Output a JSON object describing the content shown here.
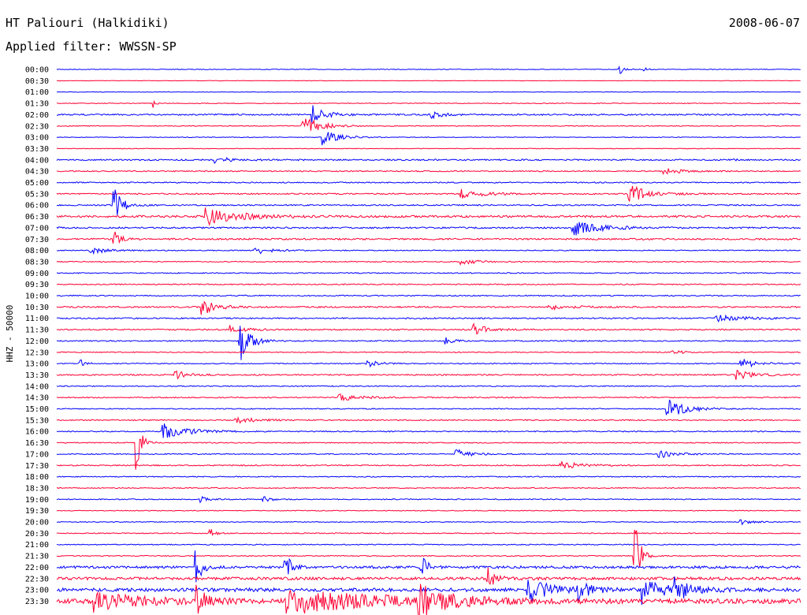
{
  "header": {
    "station": "HT Paliouri (Halkidiki)",
    "date": "2008-06-07",
    "filter": "Applied filter: WWSSN-SP",
    "channel": "HHZ - 50000"
  },
  "colors": {
    "odd_trace": "#0000ff",
    "even_trace": "#ff0033",
    "text": "#000000"
  },
  "chart_data": {
    "type": "line",
    "title": "HT Paliouri (Halkidiki)",
    "subtitle": "Applied filter: WWSSN-SP",
    "ylabel": "HHZ - 50000",
    "xlabel": "",
    "grid": false,
    "legend": "none",
    "row_labels": [
      "00:00",
      "00:30",
      "01:00",
      "01:30",
      "02:00",
      "02:30",
      "03:00",
      "03:30",
      "04:00",
      "04:30",
      "05:00",
      "05:30",
      "06:00",
      "06:30",
      "07:00",
      "07:30",
      "08:00",
      "08:30",
      "09:00",
      "09:30",
      "10:00",
      "10:30",
      "11:00",
      "11:30",
      "12:00",
      "12:30",
      "13:00",
      "13:30",
      "14:00",
      "14:30",
      "15:00",
      "15:30",
      "16:00",
      "16:30",
      "17:00",
      "17:30",
      "18:00",
      "18:30",
      "19:00",
      "19:30",
      "20:00",
      "20:30",
      "21:00",
      "21:30",
      "22:00",
      "22:30",
      "23:00",
      "23:30"
    ],
    "x_range_minutes": [
      0,
      30
    ],
    "noise_level": [
      0.4,
      0.3,
      0.3,
      0.5,
      0.9,
      0.5,
      0.4,
      0.4,
      0.9,
      0.7,
      0.7,
      0.8,
      0.8,
      1.3,
      1.0,
      1.0,
      0.6,
      0.6,
      0.6,
      0.7,
      0.7,
      0.9,
      0.8,
      0.8,
      0.7,
      0.6,
      0.6,
      0.8,
      0.6,
      0.7,
      0.6,
      0.7,
      0.7,
      0.6,
      0.6,
      0.7,
      0.6,
      0.6,
      0.6,
      0.5,
      0.5,
      0.6,
      0.6,
      0.6,
      1.6,
      1.8,
      2.2,
      3.0
    ],
    "events": [
      {
        "row": 0,
        "t": 22.7,
        "amp": 8,
        "dur": 0.15
      },
      {
        "row": 0,
        "t": 23.7,
        "amp": 5,
        "dur": 0.1
      },
      {
        "row": 3,
        "t": 3.9,
        "amp": 5,
        "dur": 0.1
      },
      {
        "row": 4,
        "t": 10.3,
        "amp": 12,
        "dur": 0.5
      },
      {
        "row": 4,
        "t": 15.1,
        "amp": 5,
        "dur": 0.4
      },
      {
        "row": 5,
        "t": 9.9,
        "amp": 14,
        "dur": 0.6
      },
      {
        "row": 6,
        "t": 10.7,
        "amp": 10,
        "dur": 0.6
      },
      {
        "row": 8,
        "t": 6.4,
        "amp": 4,
        "dur": 0.6
      },
      {
        "row": 8,
        "t": 27.2,
        "amp": 7,
        "dur": 0.1
      },
      {
        "row": 9,
        "t": 24.5,
        "amp": 4,
        "dur": 0.6
      },
      {
        "row": 11,
        "t": 16.3,
        "amp": 6,
        "dur": 0.8
      },
      {
        "row": 11,
        "t": 23.1,
        "amp": 12,
        "dur": 0.7
      },
      {
        "row": 12,
        "t": 2.3,
        "amp": 24,
        "dur": 0.3
      },
      {
        "row": 13,
        "t": 6.0,
        "amp": 12,
        "dur": 1.2
      },
      {
        "row": 14,
        "t": 20.8,
        "amp": 10,
        "dur": 1.0
      },
      {
        "row": 15,
        "t": 2.3,
        "amp": 10,
        "dur": 0.3
      },
      {
        "row": 16,
        "t": 1.3,
        "amp": 5,
        "dur": 0.6
      },
      {
        "row": 16,
        "t": 8.0,
        "amp": 5,
        "dur": 0.6
      },
      {
        "row": 17,
        "t": 16.3,
        "amp": 4,
        "dur": 0.6
      },
      {
        "row": 21,
        "t": 5.8,
        "amp": 12,
        "dur": 0.5
      },
      {
        "row": 21,
        "t": 19.8,
        "amp": 4,
        "dur": 0.8
      },
      {
        "row": 22,
        "t": 26.6,
        "amp": 4,
        "dur": 1.0
      },
      {
        "row": 23,
        "t": 7.0,
        "amp": 5,
        "dur": 0.5
      },
      {
        "row": 23,
        "t": 16.8,
        "amp": 8,
        "dur": 0.5
      },
      {
        "row": 24,
        "t": 7.4,
        "amp": 26,
        "dur": 0.4
      },
      {
        "row": 24,
        "t": 15.7,
        "amp": 4,
        "dur": 0.3
      },
      {
        "row": 25,
        "t": 24.8,
        "amp": 3,
        "dur": 0.4
      },
      {
        "row": 26,
        "t": 0.9,
        "amp": 8,
        "dur": 0.2
      },
      {
        "row": 26,
        "t": 12.5,
        "amp": 5,
        "dur": 0.4
      },
      {
        "row": 26,
        "t": 27.6,
        "amp": 7,
        "dur": 0.6
      },
      {
        "row": 27,
        "t": 4.8,
        "amp": 5,
        "dur": 0.5
      },
      {
        "row": 27,
        "t": 27.4,
        "amp": 6,
        "dur": 0.6
      },
      {
        "row": 29,
        "t": 11.4,
        "amp": 4,
        "dur": 0.8
      },
      {
        "row": 30,
        "t": 24.6,
        "amp": 12,
        "dur": 0.8
      },
      {
        "row": 31,
        "t": 7.2,
        "amp": 4,
        "dur": 0.8
      },
      {
        "row": 32,
        "t": 4.3,
        "amp": 10,
        "dur": 0.9
      },
      {
        "row": 33,
        "t": 3.2,
        "amp": 34,
        "dur": 0.2
      },
      {
        "row": 34,
        "t": 16.1,
        "amp": 6,
        "dur": 0.6
      },
      {
        "row": 34,
        "t": 24.3,
        "amp": 5,
        "dur": 0.6
      },
      {
        "row": 35,
        "t": 20.3,
        "amp": 5,
        "dur": 0.8
      },
      {
        "row": 38,
        "t": 5.8,
        "amp": 4,
        "dur": 0.3
      },
      {
        "row": 38,
        "t": 8.3,
        "amp": 4,
        "dur": 0.3
      },
      {
        "row": 40,
        "t": 27.6,
        "amp": 3,
        "dur": 0.4
      },
      {
        "row": 41,
        "t": 6.2,
        "amp": 6,
        "dur": 0.2
      },
      {
        "row": 43,
        "t": 23.3,
        "amp": 50,
        "dur": 0.2
      },
      {
        "row": 44,
        "t": 5.6,
        "amp": 30,
        "dur": 0.2
      },
      {
        "row": 44,
        "t": 9.2,
        "amp": 22,
        "dur": 0.2
      },
      {
        "row": 44,
        "t": 14.7,
        "amp": 20,
        "dur": 0.2
      },
      {
        "row": 45,
        "t": 17.4,
        "amp": 14,
        "dur": 0.3
      },
      {
        "row": 46,
        "t": 19.0,
        "amp": 16,
        "dur": 0.8
      },
      {
        "row": 46,
        "t": 21.0,
        "amp": 12,
        "dur": 0.5
      },
      {
        "row": 46,
        "t": 23.6,
        "amp": 18,
        "dur": 0.7
      },
      {
        "row": 46,
        "t": 24.9,
        "amp": 14,
        "dur": 0.6
      },
      {
        "row": 47,
        "t": 1.5,
        "amp": 14,
        "dur": 1.5
      },
      {
        "row": 47,
        "t": 5.6,
        "amp": 18,
        "dur": 0.4
      },
      {
        "row": 47,
        "t": 9.2,
        "amp": 16,
        "dur": 3.5
      },
      {
        "row": 47,
        "t": 14.6,
        "amp": 18,
        "dur": 1.0
      }
    ]
  }
}
